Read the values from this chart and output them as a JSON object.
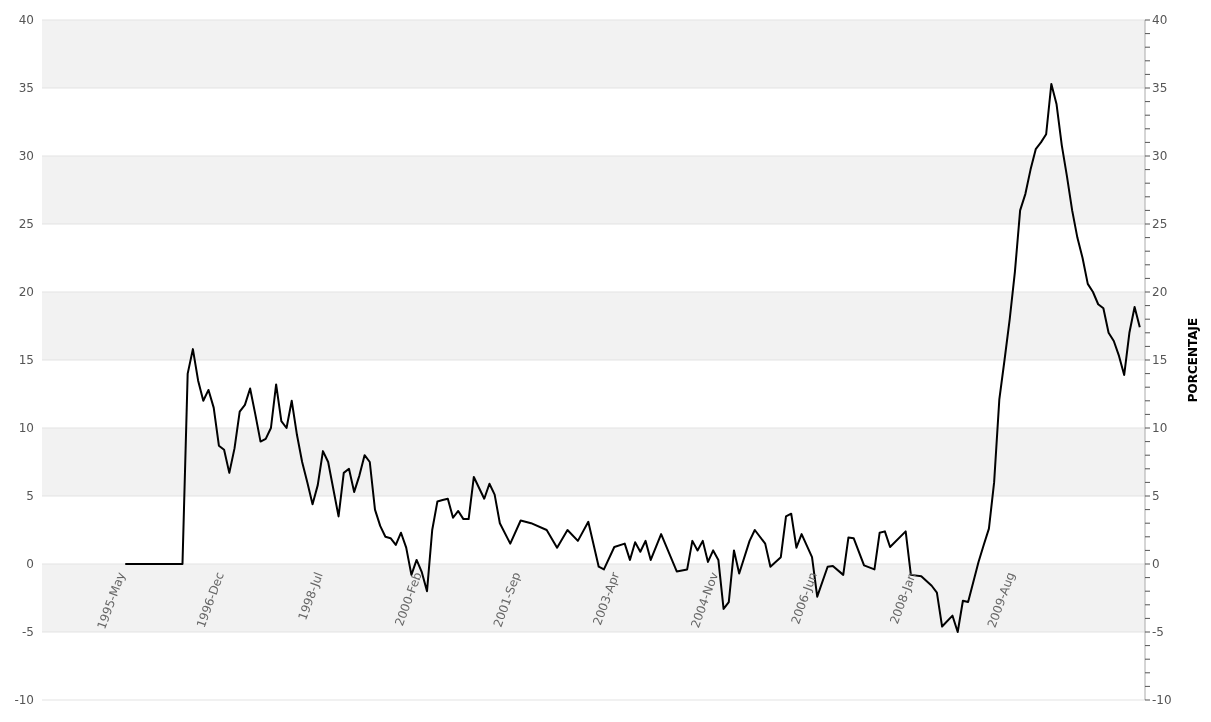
{
  "chart_data": {
    "type": "line",
    "y2label": "PORCENTAJE",
    "x": [
      "1995-05",
      "1996-04",
      "1996-05",
      "1996-06",
      "1996-07",
      "1996-08",
      "1996-09",
      "1996-10",
      "1996-11",
      "1996-12",
      "1997-01",
      "1997-02",
      "1997-03",
      "1997-04",
      "1997-05",
      "1997-06",
      "1997-07",
      "1997-08",
      "1997-09",
      "1997-10",
      "1997-11",
      "1997-12",
      "1998-01",
      "1998-02",
      "1998-03",
      "1998-04",
      "1998-05",
      "1998-06",
      "1998-07",
      "1998-08",
      "1998-09",
      "1998-10",
      "1998-11",
      "1998-12",
      "1999-01",
      "1999-02",
      "1999-03",
      "1999-04",
      "1999-05",
      "1999-06",
      "1999-07",
      "1999-08",
      "1999-09",
      "1999-10",
      "1999-11",
      "1999-12",
      "2000-01",
      "2000-02",
      "2000-03",
      "2000-04",
      "2000-05",
      "2000-06",
      "2000-07",
      "2000-08",
      "2000-09",
      "2000-10",
      "2000-11",
      "2000-12",
      "2001-02",
      "2001-03",
      "2001-04",
      "2001-05",
      "2001-07",
      "2001-09",
      "2001-11",
      "2002-02",
      "2002-04",
      "2002-06",
      "2002-08",
      "2002-10",
      "2002-12",
      "2003-01",
      "2003-03",
      "2003-05",
      "2003-06",
      "2003-07",
      "2003-08",
      "2003-09",
      "2003-10",
      "2003-12",
      "2004-03",
      "2004-05",
      "2004-06",
      "2004-07",
      "2004-08",
      "2004-09",
      "2004-10",
      "2004-11",
      "2004-12",
      "2005-01",
      "2005-02",
      "2005-03",
      "2005-05",
      "2005-06",
      "2005-08",
      "2005-09",
      "2005-11",
      "2005-12",
      "2006-01",
      "2006-02",
      "2006-03",
      "2006-05",
      "2006-06",
      "2006-08",
      "2006-09",
      "2006-11",
      "2006-12",
      "2007-01",
      "2007-03",
      "2007-05",
      "2007-06",
      "2007-07",
      "2007-08",
      "2007-11",
      "2007-12",
      "2008-02",
      "2008-04",
      "2008-05",
      "2008-06",
      "2008-08",
      "2008-09",
      "2008-10",
      "2008-11",
      "2009-01",
      "2009-02",
      "2009-03",
      "2009-04",
      "2009-05",
      "2009-06",
      "2009-07",
      "2009-08",
      "2009-09",
      "2009-10",
      "2009-11",
      "2009-12",
      "2010-01",
      "2010-02",
      "2010-03",
      "2010-04",
      "2010-05",
      "2010-06",
      "2010-07",
      "2010-08",
      "2010-09",
      "2010-10",
      "2010-11",
      "2010-12",
      "2011-01",
      "2011-02",
      "2011-03",
      "2011-04",
      "2011-05",
      "2011-06",
      "2011-07",
      "2011-08"
    ],
    "series": [
      {
        "color": "#000000",
        "values": [
          0,
          0,
          14,
          15.8,
          13.5,
          12,
          12.8,
          11.5,
          8.7,
          8.4,
          6.7,
          8.5,
          11.2,
          11.7,
          12.9,
          11,
          9,
          9.2,
          10,
          13.2,
          10.5,
          10,
          12,
          9.5,
          7.5,
          6,
          4.4,
          5.8,
          8.3,
          7.5,
          5.5,
          3.5,
          6.7,
          7,
          5.3,
          6.5,
          8,
          7.5,
          4,
          2.8,
          2,
          1.9,
          1.4,
          2.3,
          1.2,
          -0.8,
          0.3,
          -0.6,
          -2,
          2.5,
          4.6,
          4.7,
          4.8,
          3.4,
          3.9,
          3.3,
          3.3,
          6.4,
          4.8,
          5.9,
          5.1,
          3,
          1.5,
          3.2,
          3,
          2.5,
          1.2,
          2.5,
          1.7,
          3.1,
          -0.2,
          -0.4,
          1.25,
          1.5,
          0.3,
          1.6,
          0.9,
          1.7,
          0.3,
          2.2,
          -0.55,
          -0.4,
          1.7,
          1,
          1.7,
          0.15,
          1,
          0.3,
          -3.3,
          -2.8,
          1,
          -0.7,
          1.7,
          2.5,
          1.5,
          -0.2,
          0.5,
          3.5,
          3.7,
          1.2,
          2.2,
          0.5,
          -2.4,
          -0.2,
          -0.15,
          -0.8,
          1.95,
          1.9,
          -0.1,
          -0.4,
          2.3,
          2.4,
          1.25,
          2.4,
          -0.8,
          -0.9,
          -1.6,
          -2.1,
          -4.6,
          -3.8,
          -5,
          -2.7,
          -2.8,
          0.15,
          1.4,
          2.6,
          6,
          12.1,
          15,
          18,
          21.5,
          26,
          27.2,
          29,
          30.5,
          31,
          31.6,
          35.3,
          33.8,
          30.8,
          28.5,
          26,
          24,
          22.5,
          20.6,
          20,
          19.1,
          18.8,
          17,
          16.4,
          15.3,
          13.9,
          17,
          18.9,
          17.4
        ]
      }
    ],
    "xlim": [
      "1994-01",
      "2011-09"
    ],
    "xticks": [
      {
        "value": "1995-05",
        "label": "1995-May"
      },
      {
        "value": "1996-12",
        "label": "1996-Dec"
      },
      {
        "value": "1998-07",
        "label": "1998-Jul"
      },
      {
        "value": "2000-02",
        "label": "2000-Feb"
      },
      {
        "value": "2001-09",
        "label": "2001-Sep"
      },
      {
        "value": "2003-04",
        "label": "2003-Apr"
      },
      {
        "value": "2004-11",
        "label": "2004-Nov"
      },
      {
        "value": "2006-06",
        "label": "2006-Jun"
      },
      {
        "value": "2008-01",
        "label": "2008-Jan"
      },
      {
        "value": "2009-08",
        "label": "2009-Aug"
      }
    ],
    "ylim": [
      -10,
      40
    ],
    "yticks": [
      -10,
      -5,
      0,
      5,
      10,
      15,
      20,
      25,
      30,
      35,
      40
    ],
    "y2lim": [
      -10,
      40
    ],
    "y2ticks": [
      -10,
      {
        "value": -9,
        "label": null
      },
      {
        "value": -8,
        "label": null
      },
      {
        "value": -7,
        "label": null
      },
      {
        "value": -6,
        "label": null
      },
      -5,
      {
        "value": -4,
        "label": null
      },
      {
        "value": -3,
        "label": null
      },
      {
        "value": -2,
        "label": null
      },
      {
        "value": -1,
        "label": null
      },
      0,
      {
        "value": 1,
        "label": null
      },
      {
        "value": 2,
        "label": null
      },
      {
        "value": 3,
        "label": null
      },
      {
        "value": 4,
        "label": null
      },
      5,
      {
        "value": 6,
        "label": null
      },
      {
        "value": 7,
        "label": null
      },
      {
        "value": 8,
        "label": null
      },
      {
        "value": 9,
        "label": null
      },
      10,
      {
        "value": 11,
        "label": null
      },
      {
        "value": 12,
        "label": null
      },
      {
        "value": 13,
        "label": null
      },
      {
        "value": 14,
        "label": null
      },
      15,
      {
        "value": 16,
        "label": null
      },
      {
        "value": 17,
        "label": null
      },
      {
        "value": 18,
        "label": null
      },
      {
        "value": 19,
        "label": null
      },
      20,
      {
        "value": 21,
        "label": null
      },
      {
        "value": 22,
        "label": null
      },
      {
        "value": 23,
        "label": null
      },
      {
        "value": 24,
        "label": null
      },
      25,
      {
        "value": 26,
        "label": null
      },
      {
        "value": 27,
        "label": null
      },
      {
        "value": 28,
        "label": null
      },
      {
        "value": 29,
        "label": null
      },
      30,
      {
        "value": 31,
        "label": null
      },
      {
        "value": 32,
        "label": null
      },
      {
        "value": 33,
        "label": null
      },
      {
        "value": 34,
        "label": null
      },
      35,
      {
        "value": 36,
        "label": null
      },
      {
        "value": 37,
        "label": null
      },
      {
        "value": 38,
        "label": null
      },
      {
        "value": 39,
        "label": null
      },
      40
    ],
    "grid": "y",
    "marker": "none",
    "line_style": "solid",
    "legend": false
  }
}
